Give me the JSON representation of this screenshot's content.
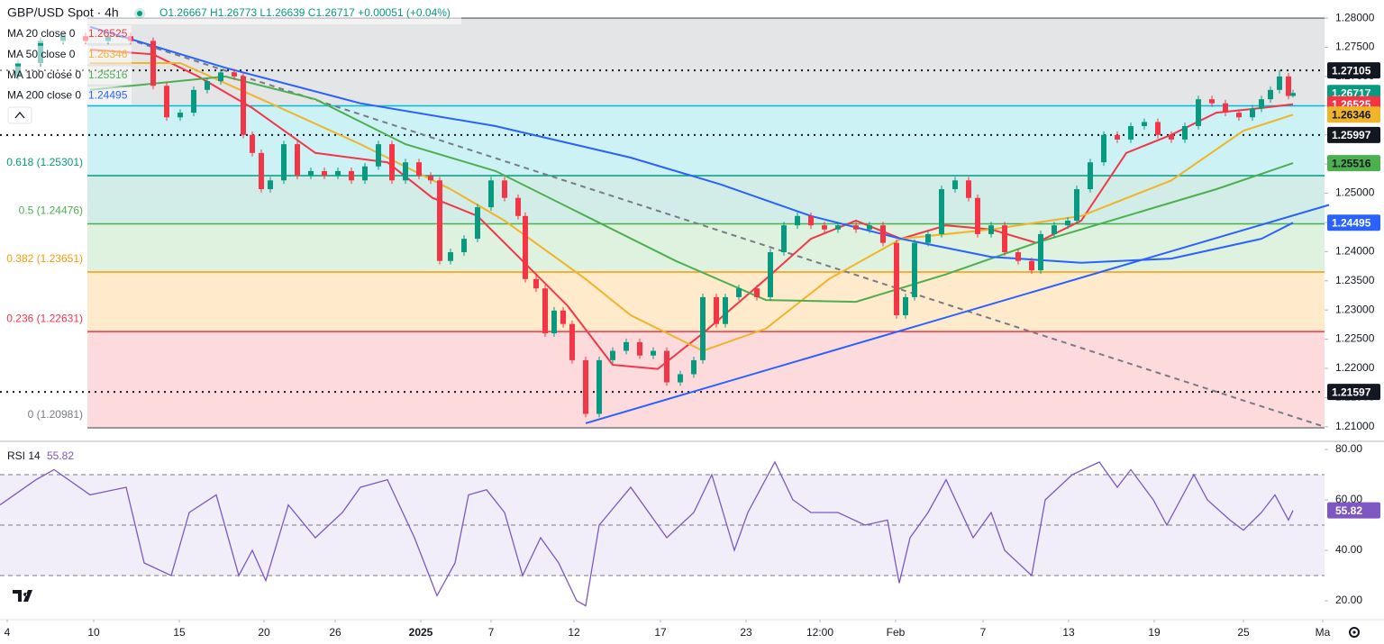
{
  "header": {
    "symbol": "GBP/USD Spot · 4h",
    "ohlc": "O1.26667 H1.26773 L1.26639 C1.26717 +0.00051 (+0.04%)"
  },
  "chart_data": [
    {
      "type": "candlestick",
      "up_color": "#089981",
      "down_color": "#f23645",
      "xlim": [
        0,
        1470
      ],
      "ylim": [
        1.2075,
        1.2831
      ],
      "yticks": [
        {
          "value": 1.21,
          "label": "1.21000"
        },
        {
          "value": 1.215,
          "label": "1.21500"
        },
        {
          "value": 1.22,
          "label": "1.22000"
        },
        {
          "value": 1.225,
          "label": "1.22500"
        },
        {
          "value": 1.23,
          "label": "1.23000"
        },
        {
          "value": 1.235,
          "label": "1.23500"
        },
        {
          "value": 1.24,
          "label": "1.24000"
        },
        {
          "value": 1.245,
          "label": "1.24500"
        },
        {
          "value": 1.25,
          "label": "1.25000"
        },
        {
          "value": 1.255,
          "label": "1.25500"
        },
        {
          "value": 1.26,
          "label": "1.26000"
        },
        {
          "value": 1.265,
          "label": "1.26500"
        },
        {
          "value": 1.27,
          "label": "1.27000"
        },
        {
          "value": 1.275,
          "label": "1.27500"
        },
        {
          "value": 1.28,
          "label": "1.28000"
        }
      ],
      "x": [
        20,
        45,
        70,
        95,
        120,
        145,
        170,
        185,
        200,
        215,
        230,
        245,
        260,
        270,
        280,
        290,
        300,
        315,
        330,
        345,
        360,
        375,
        390,
        405,
        420,
        435,
        450,
        465,
        478,
        488,
        500,
        515,
        530,
        545,
        560,
        575,
        583,
        595,
        605,
        615,
        625,
        635,
        650,
        665,
        680,
        695,
        710,
        725,
        740,
        755,
        770,
        780,
        795,
        805,
        820,
        840,
        855,
        870,
        885,
        900,
        915,
        930,
        950,
        965,
        980,
        995,
        1005,
        1015,
        1030,
        1045,
        1060,
        1075,
        1085,
        1100,
        1115,
        1130,
        1145,
        1155,
        1170,
        1185,
        1195,
        1210,
        1225,
        1240,
        1255,
        1270,
        1285,
        1300,
        1315,
        1330,
        1345,
        1360,
        1375,
        1390,
        1400,
        1410,
        1420,
        1430,
        1435
      ],
      "open": [
        1.27,
        1.2723,
        1.2761,
        1.2769,
        1.2761,
        1.2769,
        1.2761,
        1.2684,
        1.263,
        1.2638,
        1.2677,
        1.2692,
        1.2707,
        1.27,
        1.26,
        1.2569,
        1.2507,
        1.2522,
        1.2584,
        1.253,
        1.2538,
        1.253,
        1.2538,
        1.2522,
        1.2546,
        1.2584,
        1.2522,
        1.2553,
        1.253,
        1.2522,
        1.2384,
        1.2399,
        1.2422,
        1.2476,
        1.2522,
        1.2492,
        1.2461,
        1.2353,
        1.2337,
        1.226,
        1.2299,
        1.2276,
        1.2214,
        1.2122,
        1.2214,
        1.223,
        1.2245,
        1.2222,
        1.223,
        1.2176,
        1.219,
        1.2214,
        1.2322,
        1.2276,
        1.2322,
        1.2337,
        1.2322,
        1.2399,
        1.2445,
        1.2461,
        1.2445,
        1.2438,
        1.2445,
        1.2438,
        1.2445,
        1.2415,
        1.2291,
        1.2322,
        1.2415,
        1.243,
        1.2507,
        1.2522,
        1.2492,
        1.243,
        1.2445,
        1.2399,
        1.2384,
        1.2368,
        1.243,
        1.2445,
        1.2453,
        1.2507,
        1.2553,
        1.26,
        1.2592,
        1.2615,
        1.2622,
        1.26,
        1.2592,
        1.2615,
        1.2661,
        1.2654,
        1.2638,
        1.263,
        1.2645,
        1.2661,
        1.2677,
        1.27,
        1.26667
      ],
      "high": [
        1.2729,
        1.2767,
        1.2775,
        1.2775,
        1.2775,
        1.2775,
        1.2767,
        1.269,
        1.2644,
        1.2683,
        1.2698,
        1.2713,
        1.2713,
        1.2706,
        1.2606,
        1.2575,
        1.2528,
        1.259,
        1.259,
        1.2544,
        1.2544,
        1.2544,
        1.2544,
        1.2552,
        1.259,
        1.259,
        1.2559,
        1.2559,
        1.2536,
        1.2528,
        1.2405,
        1.2428,
        1.2482,
        1.2528,
        1.2528,
        1.2498,
        1.2467,
        1.2359,
        1.2343,
        1.2305,
        1.2305,
        1.2282,
        1.222,
        1.222,
        1.2236,
        1.2251,
        1.2251,
        1.2236,
        1.2236,
        1.2196,
        1.222,
        1.2328,
        1.2328,
        1.2328,
        1.2343,
        1.2343,
        1.2405,
        1.2451,
        1.2467,
        1.2467,
        1.2451,
        1.2451,
        1.2451,
        1.2451,
        1.2451,
        1.2421,
        1.2328,
        1.2421,
        1.2436,
        1.2513,
        1.2528,
        1.2528,
        1.2498,
        1.2451,
        1.2451,
        1.2405,
        1.239,
        1.2436,
        1.2451,
        1.2459,
        1.2513,
        1.2559,
        1.2606,
        1.2606,
        1.2621,
        1.2628,
        1.2628,
        1.2606,
        1.2621,
        1.2667,
        1.2667,
        1.266,
        1.2644,
        1.2651,
        1.2667,
        1.2683,
        1.2711,
        1.2706,
        1.26773
      ],
      "low": [
        1.2694,
        1.2717,
        1.2755,
        1.2755,
        1.2755,
        1.2755,
        1.2678,
        1.2624,
        1.2624,
        1.2632,
        1.2671,
        1.2686,
        1.2694,
        1.2594,
        1.2563,
        1.2501,
        1.2501,
        1.2516,
        1.2524,
        1.2524,
        1.2524,
        1.2524,
        1.2516,
        1.2516,
        1.254,
        1.2516,
        1.2516,
        1.2524,
        1.2516,
        1.2378,
        1.2378,
        1.2393,
        1.2416,
        1.247,
        1.2486,
        1.2455,
        1.2347,
        1.2331,
        1.2254,
        1.2254,
        1.227,
        1.2208,
        1.2116,
        1.2116,
        1.2208,
        1.2224,
        1.2216,
        1.2216,
        1.217,
        1.217,
        1.2184,
        1.2208,
        1.227,
        1.227,
        1.2316,
        1.2316,
        1.2316,
        1.2393,
        1.2439,
        1.2439,
        1.2432,
        1.2432,
        1.2432,
        1.2432,
        1.2409,
        1.2285,
        1.2285,
        1.2316,
        1.2409,
        1.2424,
        1.2501,
        1.2486,
        1.2424,
        1.2424,
        1.2393,
        1.2378,
        1.2362,
        1.2362,
        1.2424,
        1.2439,
        1.2447,
        1.2501,
        1.2547,
        1.2586,
        1.2586,
        1.2609,
        1.2594,
        1.2586,
        1.2586,
        1.2609,
        1.2648,
        1.2632,
        1.2624,
        1.2624,
        1.2639,
        1.2655,
        1.2671,
        1.2661,
        1.26639
      ],
      "close": [
        1.2723,
        1.2761,
        1.2769,
        1.2761,
        1.2769,
        1.2761,
        1.2684,
        1.263,
        1.2638,
        1.2677,
        1.2692,
        1.2707,
        1.27,
        1.26,
        1.2569,
        1.2507,
        1.2522,
        1.2584,
        1.253,
        1.2538,
        1.253,
        1.2538,
        1.2522,
        1.2546,
        1.2584,
        1.2522,
        1.2553,
        1.253,
        1.2522,
        1.2384,
        1.2399,
        1.2422,
        1.2476,
        1.2522,
        1.2492,
        1.2461,
        1.2353,
        1.2337,
        1.226,
        1.2299,
        1.2276,
        1.2214,
        1.2122,
        1.2214,
        1.223,
        1.2245,
        1.2222,
        1.223,
        1.2176,
        1.219,
        1.2214,
        1.2322,
        1.2276,
        1.2322,
        1.2337,
        1.2322,
        1.2399,
        1.2445,
        1.2461,
        1.2445,
        1.2438,
        1.2445,
        1.2438,
        1.2445,
        1.2415,
        1.2291,
        1.2322,
        1.2415,
        1.243,
        1.2507,
        1.2522,
        1.2492,
        1.243,
        1.2445,
        1.2399,
        1.2384,
        1.2368,
        1.243,
        1.2445,
        1.2453,
        1.2507,
        1.2553,
        1.26,
        1.2592,
        1.2615,
        1.2622,
        1.26,
        1.2592,
        1.2615,
        1.2661,
        1.2654,
        1.2638,
        1.263,
        1.2645,
        1.2661,
        1.2677,
        1.27,
        1.26667,
        1.26717
      ],
      "series": [
        {
          "name": "MA 20 close 0",
          "color": "#f23645",
          "last": 1.26525,
          "x": [
            100,
            170,
            220,
            280,
            350,
            430,
            480,
            530,
            580,
            630,
            680,
            730,
            780,
            850,
            900,
            950,
            1000,
            1050,
            1100,
            1150,
            1200,
            1250,
            1300,
            1350,
            1400,
            1435
          ],
          "values": [
            1.2746,
            1.2738,
            1.27,
            1.2646,
            1.2569,
            1.2553,
            1.2492,
            1.2461,
            1.2384,
            1.2307,
            1.2206,
            1.2199,
            1.226,
            1.2353,
            1.2422,
            1.2453,
            1.2422,
            1.2445,
            1.2438,
            1.2415,
            1.2453,
            1.2569,
            1.26,
            1.2638,
            1.2646,
            1.26525
          ]
        },
        {
          "name": "MA 50 close 0",
          "color": "#f0b429",
          "last": 1.26346,
          "x": [
            100,
            200,
            300,
            400,
            500,
            560,
            650,
            700,
            780,
            850,
            920,
            1000,
            1100,
            1200,
            1300,
            1380,
            1435
          ],
          "values": [
            1.2723,
            1.2723,
            1.2654,
            1.2584,
            1.2507,
            1.2453,
            1.2353,
            1.2291,
            1.223,
            1.2268,
            1.2353,
            1.2422,
            1.2438,
            1.2461,
            1.2522,
            1.2607,
            1.26346
          ]
        },
        {
          "name": "MA 100 close 0",
          "color": "#4caf50",
          "last": 1.25516,
          "x": [
            100,
            250,
            350,
            450,
            550,
            650,
            750,
            850,
            950,
            1050,
            1150,
            1250,
            1350,
            1435
          ],
          "values": [
            1.2677,
            1.27,
            1.2661,
            1.2584,
            1.2538,
            1.2461,
            1.2384,
            1.2317,
            1.2314,
            1.2361,
            1.2415,
            1.2461,
            1.2507,
            1.25516
          ]
        },
        {
          "name": "MA 200 close 0",
          "color": "#2962ff",
          "last": 1.24495,
          "x": [
            100,
            250,
            400,
            550,
            700,
            800,
            900,
            1000,
            1100,
            1200,
            1300,
            1400,
            1435
          ],
          "values": [
            1.2785,
            1.2715,
            1.2654,
            1.2615,
            1.2561,
            1.2515,
            1.2461,
            1.2422,
            1.2391,
            1.2381,
            1.2388,
            1.2422,
            1.24495
          ]
        }
      ],
      "fib_levels": [
        {
          "value": 1.28,
          "color": "#787b86",
          "fill": "rgba(120,123,134,0.2)"
        },
        {
          "value": 1.26498,
          "color": "#00bcd4",
          "fill": "rgba(0,188,212,0.2)"
        },
        {
          "label": "0.618 (1.25301)",
          "value": 1.25301,
          "color": "#089981",
          "fill": "rgba(8,153,129,0.18)"
        },
        {
          "label": "0.5 (1.24476)",
          "value": 1.24476,
          "color": "#4caf50",
          "fill": "rgba(76,175,80,0.18)"
        },
        {
          "label": "0.382 (1.23651)",
          "value": 1.23651,
          "color": "#ff9800",
          "fill": "rgba(255,152,0,0.2)"
        },
        {
          "label": "0.236 (1.22631)",
          "value": 1.22631,
          "color": "#f23645",
          "fill": "rgba(242,54,69,0.18)"
        },
        {
          "label": "0 (1.20981)",
          "value": 1.20981,
          "color": "#787b86"
        }
      ],
      "trendlines": [
        {
          "x": [
            100,
            1470
          ],
          "y": [
            1.2785,
            1.21
          ],
          "color": "#787b86",
          "dashed": true
        },
        {
          "x": [
            650,
            1475
          ],
          "y": [
            1.2106,
            1.248
          ],
          "color": "#2962ff",
          "dashed": false
        }
      ],
      "horizontal_lines": [
        1.27105,
        1.25997,
        1.21597
      ],
      "price_labels": [
        {
          "value": 1.27105,
          "color": "#131722",
          "text_color": "#ffffff"
        },
        {
          "value": 1.26717,
          "color": "#089981",
          "text_color": "#ffffff"
        },
        {
          "value": 1.26525,
          "color": "#f23645",
          "text_color": "#ffffff"
        },
        {
          "value": 1.26346,
          "color": "#f0b429",
          "text_color": "#131722"
        },
        {
          "value": 1.25997,
          "color": "#131722",
          "text_color": "#ffffff"
        },
        {
          "value": 1.25516,
          "color": "#4caf50",
          "text_color": "#131722"
        },
        {
          "value": 1.24495,
          "color": "#2962ff",
          "text_color": "#ffffff"
        },
        {
          "value": 1.21597,
          "color": "#131722",
          "text_color": "#ffffff"
        }
      ]
    },
    {
      "type": "line",
      "title": "RSI 14",
      "last": 55.82,
      "color": "#7e57c2",
      "xlim": [
        0,
        1470
      ],
      "ylim": [
        12.5,
        83.2
      ],
      "yticks": [
        {
          "value": 20,
          "label": "20.00"
        },
        {
          "value": 40,
          "label": "40.00"
        },
        {
          "value": 60,
          "label": "60.00"
        },
        {
          "value": 80,
          "label": "80.00"
        }
      ],
      "levels": [
        70,
        50,
        30
      ],
      "band_fill": "rgba(126,87,194,0.1)",
      "xticks": [
        {
          "value": 8,
          "label": "4"
        },
        {
          "value": 104,
          "label": "10"
        },
        {
          "value": 199,
          "label": "15"
        },
        {
          "value": 293,
          "label": "20"
        },
        {
          "value": 372,
          "label": "26"
        },
        {
          "value": 467,
          "label": "2025"
        },
        {
          "value": 545,
          "label": "7"
        },
        {
          "value": 637,
          "label": "12"
        },
        {
          "value": 733,
          "label": "17"
        },
        {
          "value": 828,
          "label": "23"
        },
        {
          "value": 910,
          "label": "12:00"
        },
        {
          "value": 994,
          "label": "Feb"
        },
        {
          "value": 1091,
          "label": "7"
        },
        {
          "value": 1186,
          "label": "13"
        },
        {
          "value": 1281,
          "label": "19"
        },
        {
          "value": 1380,
          "label": "25"
        },
        {
          "value": 1468,
          "label": "Ma"
        }
      ],
      "series": [
        {
          "x": [
            0,
            40,
            60,
            100,
            140,
            160,
            190,
            210,
            240,
            265,
            280,
            295,
            320,
            350,
            380,
            400,
            430,
            460,
            485,
            505,
            520,
            540,
            560,
            580,
            600,
            620,
            640,
            650,
            665,
            700,
            740,
            770,
            790,
            815,
            830,
            860,
            880,
            900,
            930,
            960,
            985,
            998,
            1010,
            1030,
            1050,
            1080,
            1100,
            1115,
            1145,
            1160,
            1190,
            1220,
            1240,
            1255,
            1280,
            1295,
            1325,
            1340,
            1365,
            1380,
            1400,
            1415,
            1430,
            1435
          ],
          "values": [
            58,
            68,
            72,
            62,
            65,
            35,
            30,
            55,
            62,
            30,
            40,
            28,
            58,
            45,
            55,
            65,
            68,
            45,
            22,
            35,
            62,
            64,
            55,
            30,
            45,
            35,
            20,
            18,
            50,
            65,
            45,
            55,
            70,
            40,
            55,
            75,
            60,
            55,
            55,
            50,
            52,
            27,
            45,
            55,
            68,
            45,
            55,
            40,
            30,
            60,
            70,
            75,
            65,
            72,
            60,
            50,
            70,
            60,
            52,
            48,
            55,
            62,
            52,
            55.82
          ]
        }
      ]
    }
  ]
}
